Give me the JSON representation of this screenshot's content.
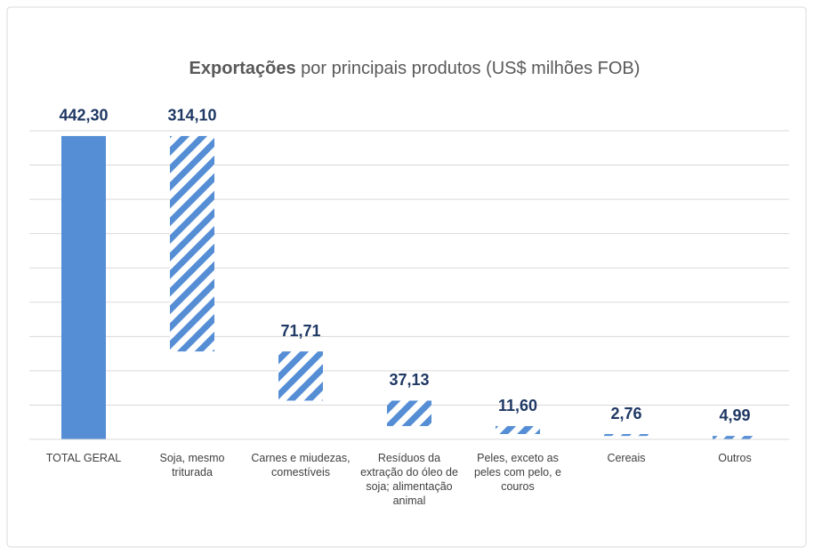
{
  "chart_data": {
    "type": "waterfall",
    "title_parts": [
      "Exportações",
      "por principais produtos (US$ milhões FOB)"
    ],
    "categories": [
      "TOTAL GERAL",
      "Soja, mesmo triturada",
      "Carnes e miudezas, comestíveis",
      "Resíduos da extração do óleo de soja; alimentação animal",
      "Peles, exceto as peles com pelo, e couros",
      "Cereais",
      "Outros"
    ],
    "values": [
      442.3,
      314.1,
      71.71,
      37.13,
      11.6,
      2.76,
      4.99
    ],
    "value_labels": [
      "442,30",
      "314,10",
      "71,71",
      "37,13",
      "11,60",
      "2,76",
      "4,99"
    ],
    "is_total": [
      true,
      false,
      false,
      false,
      false,
      false,
      false
    ],
    "color": "#558ed5",
    "ylim": [
      0,
      450
    ],
    "yticks": [
      0,
      50,
      100,
      150,
      200,
      250,
      300,
      350,
      400,
      450
    ],
    "grid": true
  }
}
